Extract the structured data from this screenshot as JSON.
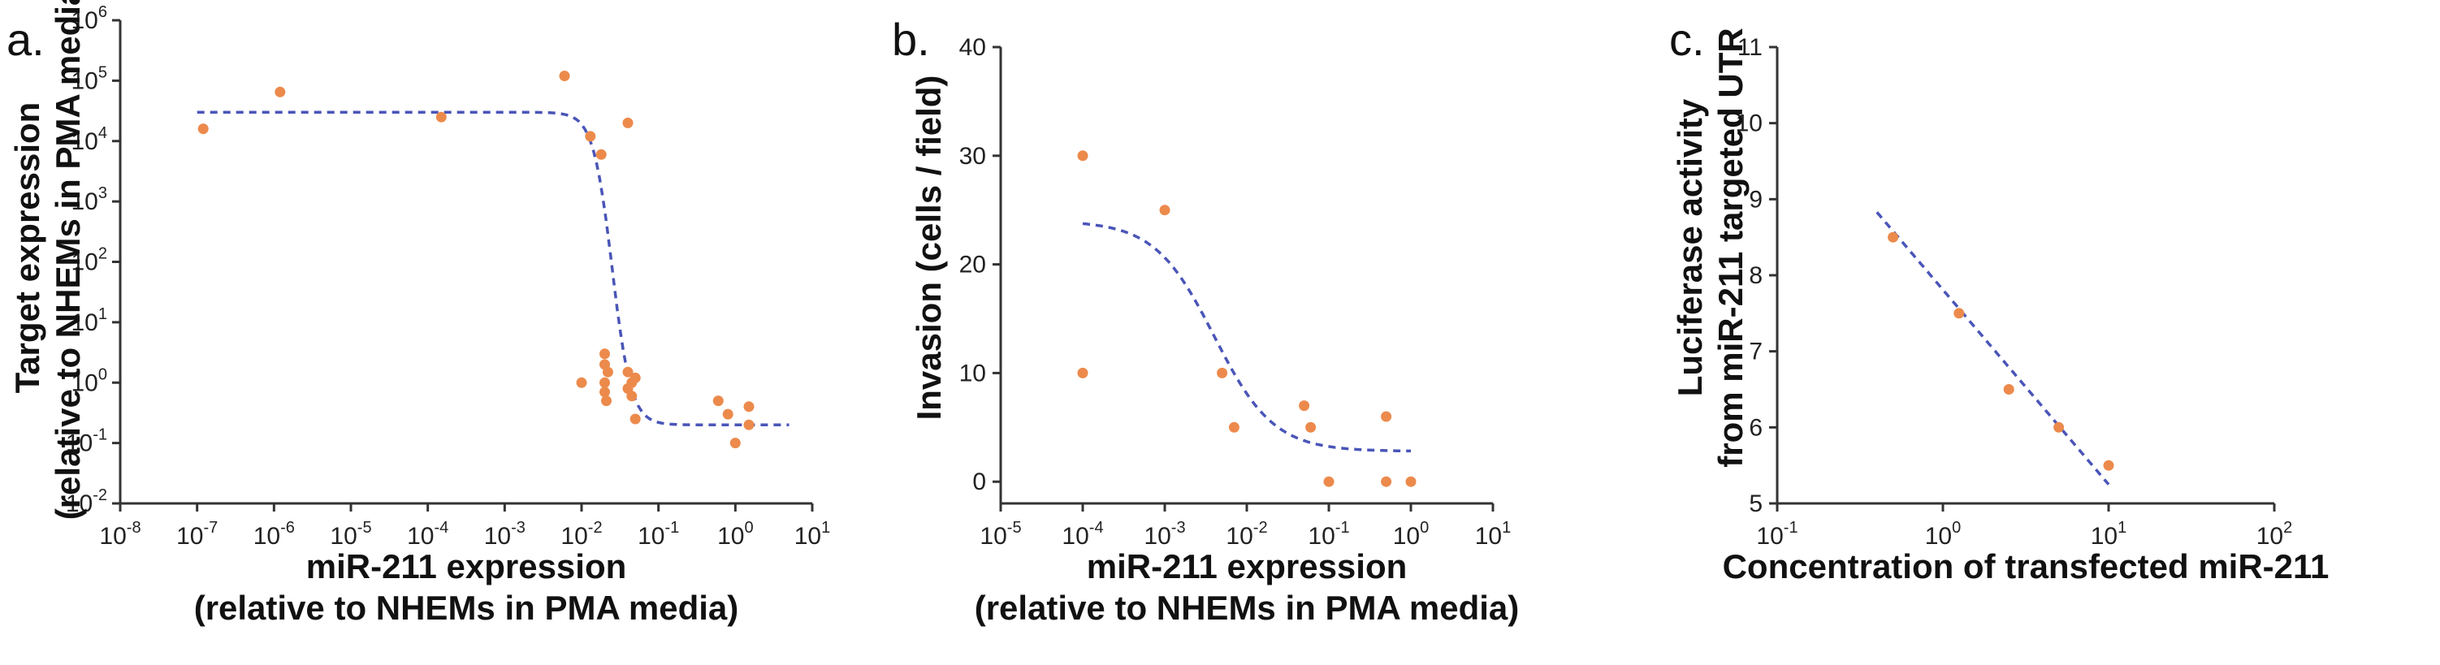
{
  "chart_data": [
    {
      "panel": "a.",
      "type": "scatter",
      "x_scale": "log",
      "y_scale": "log",
      "xlim_exp": [
        -8,
        1
      ],
      "ylim_exp": [
        -2,
        6
      ],
      "xlabel": [
        "miR-211 expression",
        "(relative to NHEMs in PMA media)"
      ],
      "ylabel": [
        "Target expression",
        "(relative to NHEMs in PMA media)"
      ],
      "points": [
        {
          "x": 1.2e-07,
          "y": 16000.0
        },
        {
          "x": 1.2e-06,
          "y": 65000.0
        },
        {
          "x": 0.00015,
          "y": 25000.0
        },
        {
          "x": 0.006,
          "y": 120000.0
        },
        {
          "x": 0.013,
          "y": 12000.0
        },
        {
          "x": 0.018,
          "y": 6000.0
        },
        {
          "x": 0.04,
          "y": 20000.0
        },
        {
          "x": 0.01,
          "y": 1.0
        },
        {
          "x": 0.02,
          "y": 3.0
        },
        {
          "x": 0.02,
          "y": 2.0
        },
        {
          "x": 0.022,
          "y": 1.5
        },
        {
          "x": 0.02,
          "y": 1.0
        },
        {
          "x": 0.02,
          "y": 0.7
        },
        {
          "x": 0.021,
          "y": 0.5
        },
        {
          "x": 0.04,
          "y": 1.5
        },
        {
          "x": 0.045,
          "y": 1.0
        },
        {
          "x": 0.04,
          "y": 0.8
        },
        {
          "x": 0.045,
          "y": 0.6
        },
        {
          "x": 0.05,
          "y": 1.2
        },
        {
          "x": 0.05,
          "y": 0.25
        },
        {
          "x": 0.6,
          "y": 0.5
        },
        {
          "x": 0.8,
          "y": 0.3
        },
        {
          "x": 1.0,
          "y": 0.1
        },
        {
          "x": 1.5,
          "y": 0.4
        },
        {
          "x": 1.5,
          "y": 0.2
        }
      ],
      "fit": {
        "model": "sigmoid",
        "top": 30000,
        "bottom": 0.2,
        "ec50": 0.025,
        "hill": 3.5,
        "x_from": 1e-07,
        "x_to": 5
      }
    },
    {
      "panel": "b.",
      "type": "scatter",
      "x_scale": "log",
      "y_scale": "linear",
      "xlim_exp": [
        -5,
        1
      ],
      "ylim": [
        -2,
        40
      ],
      "yticks": [
        0,
        10,
        20,
        30,
        40
      ],
      "xlabel": [
        "miR-211 expression",
        "(relative to NHEMs in PMA media)"
      ],
      "ylabel": [
        "Invasion (cells / field)"
      ],
      "points": [
        {
          "x": 0.0001,
          "y": 30
        },
        {
          "x": 0.0001,
          "y": 10
        },
        {
          "x": 0.001,
          "y": 25
        },
        {
          "x": 0.005,
          "y": 10
        },
        {
          "x": 0.007,
          "y": 5
        },
        {
          "x": 0.05,
          "y": 7
        },
        {
          "x": 0.06,
          "y": 5
        },
        {
          "x": 0.1,
          "y": 0
        },
        {
          "x": 0.5,
          "y": 6
        },
        {
          "x": 0.5,
          "y": 0
        },
        {
          "x": 1.0,
          "y": 0
        }
      ],
      "fit": {
        "model": "sigmoid",
        "top": 24,
        "bottom": 2.8,
        "ec50": 0.004,
        "hill": 1.2,
        "x_from": 0.0001,
        "x_to": 1
      }
    },
    {
      "panel": "c.",
      "type": "scatter",
      "x_scale": "log",
      "y_scale": "linear",
      "xlim_exp": [
        -1,
        2
      ],
      "ylim": [
        5,
        11
      ],
      "yticks": [
        5,
        6,
        7,
        8,
        9,
        10,
        11
      ],
      "xlabel": [
        "Concentration of transfected miR-211"
      ],
      "ylabel": [
        "Luciferase activity",
        "from miR-211 targeted UTR"
      ],
      "points": [
        {
          "x": 0.5,
          "y": 8.5
        },
        {
          "x": 1.25,
          "y": 7.5
        },
        {
          "x": 2.5,
          "y": 6.5
        },
        {
          "x": 5,
          "y": 6.0
        },
        {
          "x": 10,
          "y": 5.5
        }
      ],
      "fit": {
        "model": "log-linear",
        "slope": -2.56,
        "intercept": 7.81,
        "x_from": 0.4,
        "x_to": 10
      }
    }
  ]
}
